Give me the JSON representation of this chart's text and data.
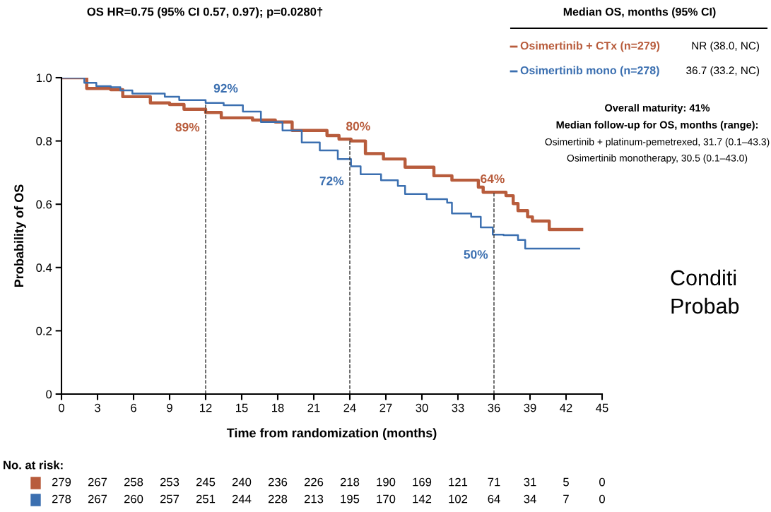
{
  "chart_data": {
    "type": "step",
    "title": "OS HR=0.75 (95% CI 0.57, 0.97); p=0.0280†",
    "xlabel": "Time from randomization (months)",
    "ylabel": "Probability of OS",
    "legend_title": "Median OS, months (95% CI)",
    "legend": "top right",
    "marker": "none",
    "grid": false,
    "xlim": [
      0,
      45
    ],
    "xticks": [
      0,
      3,
      6,
      9,
      12,
      15,
      18,
      21,
      24,
      27,
      30,
      33,
      36,
      39,
      42,
      45
    ],
    "ylim": [
      0,
      1.0
    ],
    "yticks": [
      0,
      0.2,
      0.4,
      0.6,
      0.8,
      {
        "value": 1.0,
        "label": "1.0"
      }
    ],
    "series": [
      {
        "name": "Osimertinib + CTx (n=279)",
        "color": "#b85c3c",
        "x": [
          0,
          2.1,
          4.1,
          5.1,
          7.4,
          9,
          10.2,
          12,
          13.3,
          15.9,
          17.8,
          19.2,
          22.1,
          23.1,
          24.1,
          25.3,
          26.8,
          28.6,
          30.2,
          31,
          32.5,
          34.7,
          35.1,
          36,
          37,
          37.6,
          38,
          38.8,
          39.2,
          40.5,
          40.6,
          43.3
        ],
        "values": [
          1.0,
          0.966,
          0.962,
          0.94,
          0.92,
          0.915,
          0.9,
          0.89,
          0.873,
          0.866,
          0.86,
          0.833,
          0.817,
          0.806,
          0.8,
          0.76,
          0.743,
          0.717,
          0.717,
          0.69,
          0.676,
          0.654,
          0.638,
          0.638,
          0.627,
          0.602,
          0.58,
          0.56,
          0.547,
          0.547,
          0.52,
          0.52
        ]
      },
      {
        "name": "Osimertinib mono (n=278)",
        "color": "#3b6fb0",
        "x": [
          0,
          1.9,
          2.9,
          4.1,
          4.9,
          5.9,
          8.6,
          9.8,
          12,
          13.5,
          15.1,
          16.6,
          18.4,
          20,
          21.5,
          23,
          24.1,
          24.9,
          26.6,
          28,
          28.6,
          30.4,
          32.1,
          32.5,
          34.1,
          34.9,
          35.9,
          36.8,
          38,
          38.6,
          43.1
        ],
        "values": [
          1.0,
          0.984,
          0.973,
          0.97,
          0.96,
          0.95,
          0.94,
          0.929,
          0.92,
          0.913,
          0.893,
          0.86,
          0.833,
          0.795,
          0.77,
          0.743,
          0.72,
          0.695,
          0.676,
          0.658,
          0.632,
          0.616,
          0.605,
          0.571,
          0.56,
          0.527,
          0.504,
          0.502,
          0.487,
          0.46,
          0.46
        ]
      }
    ],
    "ref_lines": [
      {
        "axis": "x",
        "value": 12,
        "line_style": "dashed",
        "color": "#333333"
      },
      {
        "axis": "x",
        "value": 24,
        "line_style": "dashed",
        "color": "#333333"
      },
      {
        "axis": "x",
        "value": 36,
        "line_style": "dashed",
        "color": "#333333"
      }
    ],
    "annotations": [
      "NR (38.0, NC)",
      "36.7 (33.2, NC)",
      "Overall maturity: 41%",
      "Median follow-up for OS, months (range):",
      "Osimertinib + platinum-pemetrexed, 31.7 (0.1–43.3)",
      "Osimertinib monotherapy, 30.5 (0.1–43.0)",
      "No. at risk:",
      "279 267 258 253 245 240 236 226 218 190 169 121 71 31 5 0",
      "278 267 260 257 251 244 228 213 195 170 142 102 64 34 7 0",
      "Conditi",
      "Probab",
      {
        "text": "92%",
        "x": 12,
        "y": 0.92
      },
      {
        "text": "89%",
        "x": 12,
        "y": 0.89
      },
      {
        "text": "80%",
        "x": 24,
        "y": 0.8
      },
      {
        "text": "72%",
        "x": 24,
        "y": 0.72
      },
      {
        "text": "64%",
        "x": 36,
        "y": 0.64
      },
      {
        "text": "50%",
        "x": 36,
        "y": 0.5
      }
    ]
  }
}
